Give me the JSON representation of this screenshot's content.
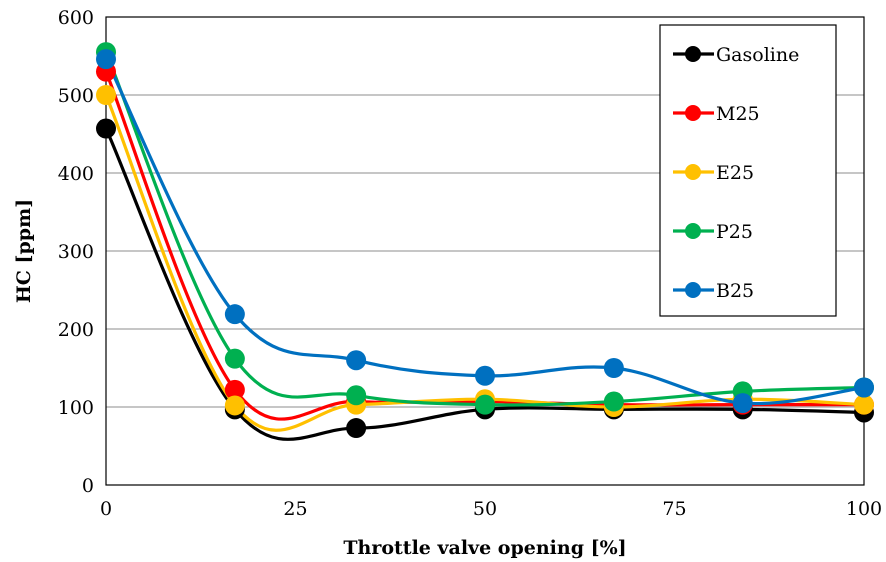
{
  "chart_data": {
    "type": "line",
    "title": "",
    "xlabel": "Throttle valve opening [%]",
    "ylabel": "HC [ppm]",
    "xlim": [
      0,
      100
    ],
    "ylim": [
      0,
      600
    ],
    "x_ticks": [
      "0",
      "25",
      "50",
      "75",
      "100"
    ],
    "y_ticks": [
      "0",
      "100",
      "200",
      "300",
      "400",
      "500",
      "600"
    ],
    "grid": true,
    "legend_position": "top-right",
    "x": [
      0,
      17,
      33,
      50,
      67,
      84,
      100
    ],
    "series": [
      {
        "name": "Gasoline",
        "color": "#000000",
        "values": [
          457,
          97,
          73,
          97,
          97,
          97,
          93
        ]
      },
      {
        "name": "M25",
        "color": "#ff0000",
        "values": [
          530,
          122,
          107,
          107,
          103,
          103,
          103
        ]
      },
      {
        "name": "E25",
        "color": "#ffc000",
        "values": [
          500,
          102,
          103,
          110,
          100,
          110,
          103
        ]
      },
      {
        "name": "P25",
        "color": "#00b050",
        "values": [
          555,
          162,
          115,
          103,
          107,
          120,
          125
        ]
      },
      {
        "name": "B25",
        "color": "#0070c0",
        "values": [
          546,
          219,
          160,
          140,
          150,
          105,
          125
        ]
      }
    ]
  }
}
